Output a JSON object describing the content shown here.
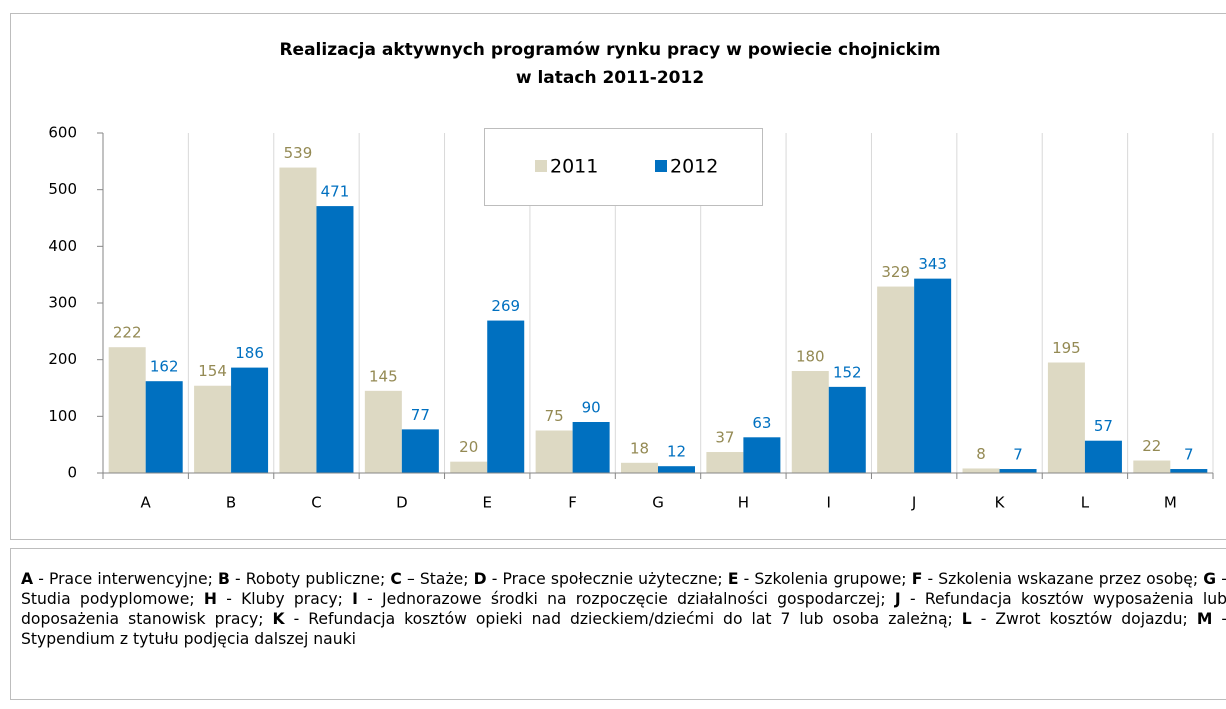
{
  "chart_data": {
    "type": "bar",
    "title": [
      "Realizacja aktywnych programów rynku pracy w powiecie chojnickim",
      "w latach 2011-2012"
    ],
    "categories": [
      "A",
      "B",
      "C",
      "D",
      "E",
      "F",
      "G",
      "H",
      "I",
      "J",
      "K",
      "L",
      "M"
    ],
    "series": [
      {
        "name": "2011",
        "color": "#ddd9c3",
        "label_color": "#948a54",
        "values": [
          222,
          154,
          539,
          145,
          20,
          75,
          18,
          37,
          180,
          329,
          8,
          195,
          22
        ]
      },
      {
        "name": "2012",
        "color": "#0070c0",
        "label_color": "#0070c0",
        "values": [
          162,
          186,
          471,
          77,
          269,
          90,
          12,
          63,
          152,
          343,
          7,
          57,
          7
        ]
      }
    ],
    "ylim": [
      0,
      600
    ],
    "yticks": [
      0,
      100,
      200,
      300,
      400,
      500,
      600
    ],
    "grid": false,
    "legend": "top"
  },
  "notes": [
    {
      "key": "A",
      "text": "- Prace interwencyjne;"
    },
    {
      "key": "B",
      "text": "- Roboty publiczne;"
    },
    {
      "key": "C",
      "text": "– Staże;"
    },
    {
      "key": "D",
      "text": "- Prace społecznie użyteczne;"
    },
    {
      "key": "E",
      "text": "- Szkolenia grupowe;"
    },
    {
      "key": "F",
      "text": "- Szkolenia wskazane przez osobę;"
    },
    {
      "key": "G",
      "text": "- Studia podyplomowe;"
    },
    {
      "key": "H",
      "text": "- Kluby pracy;"
    },
    {
      "key": "I",
      "text": "- Jednorazowe środki na rozpoczęcie działalności gospodarczej;"
    },
    {
      "key": "J",
      "text": "- Refundacja kosztów wyposażenia lub doposażenia stanowisk pracy;"
    },
    {
      "key": "K",
      "text": "- Refundacja kosztów opieki nad dzieckiem/dziećmi do lat 7 lub osoba zależną;"
    },
    {
      "key": "L",
      "text": "- Zwrot kosztów dojazdu;"
    },
    {
      "key": "M",
      "text": "- Stypendium z tytułu podjęcia dalszej nauki"
    }
  ]
}
